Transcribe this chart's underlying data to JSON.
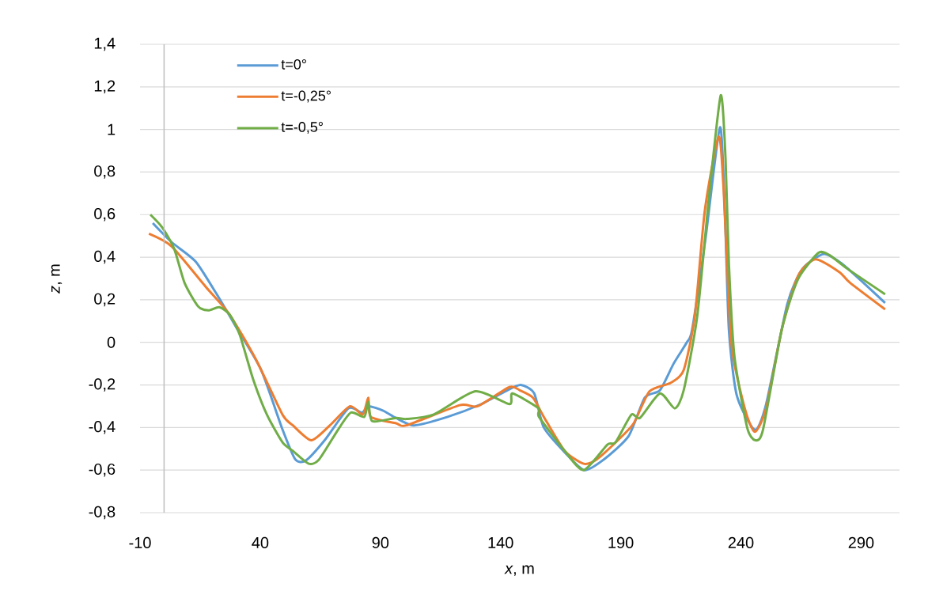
{
  "chart_data": {
    "type": "line",
    "xlabel": "*x*, m",
    "ylabel": "*z*, m",
    "xlim": [
      -10,
      306
    ],
    "ylim": [
      -0.8,
      1.4
    ],
    "xticks": [
      -10,
      40,
      90,
      140,
      190,
      240,
      290
    ],
    "yticks": [
      {
        "value": -0.8,
        "label": "-0,8"
      },
      {
        "value": -0.6,
        "label": "-0,6"
      },
      {
        "value": -0.4,
        "label": "-0,4"
      },
      {
        "value": -0.2,
        "label": "-0,2"
      },
      {
        "value": 0,
        "label": "0"
      },
      {
        "value": 0.2,
        "label": "0,2"
      },
      {
        "value": 0.4,
        "label": "0,4"
      },
      {
        "value": 0.6,
        "label": "0,6"
      },
      {
        "value": 0.8,
        "label": "0,8"
      },
      {
        "value": 1,
        "label": "1"
      },
      {
        "value": 1.2,
        "label": "1,2"
      },
      {
        "value": 1.4,
        "label": "1,4"
      }
    ],
    "grid": "y",
    "legend": "top left",
    "marker": "none",
    "line_style": "solid",
    "ref_lines": [
      {
        "axis": "x",
        "value": 0,
        "color": "#bfbfbf"
      }
    ],
    "series": [
      {
        "name": "t=0°",
        "color": "#5b9bd5",
        "x": [
          -4.7,
          3.2,
          13.1,
          21.7,
          30.6,
          40.4,
          49.3,
          54.6,
          59,
          66.8,
          76.7,
          82.3,
          85,
          91,
          96.5,
          104,
          118,
          132,
          142,
          148.4,
          154,
          158,
          167,
          174.8,
          183,
          193.3,
          200,
          206.3,
          212,
          217.5,
          219.7,
          225.3,
          231.3,
          233.3,
          235,
          238.3,
          245.8,
          250.5,
          259.3,
          265.6,
          274.5,
          282,
          290,
          300
        ],
        "values": [
          0.56,
          0.47,
          0.38,
          0.23,
          0.06,
          -0.13,
          -0.41,
          -0.55,
          -0.555,
          -0.46,
          -0.31,
          -0.33,
          -0.3,
          -0.32,
          -0.355,
          -0.39,
          -0.35,
          -0.29,
          -0.23,
          -0.2,
          -0.24,
          -0.4,
          -0.52,
          -0.6,
          -0.55,
          -0.44,
          -0.26,
          -0.225,
          -0.1,
          0,
          0.06,
          0.49,
          1.01,
          0.62,
          0.06,
          -0.25,
          -0.41,
          -0.29,
          0.18,
          0.345,
          0.415,
          0.37,
          0.29,
          0.185
        ]
      },
      {
        "name": "t=-0,25°",
        "color": "#ed7d31",
        "x": [
          -6.3,
          3.2,
          17.4,
          27.3,
          38.2,
          49.3,
          53.6,
          61.3,
          69,
          77.4,
          82.6,
          85,
          86,
          96.5,
          100.8,
          123,
          130.5,
          143.7,
          148,
          153.5,
          158,
          166.7,
          174.6,
          180,
          188.8,
          195.4,
          202,
          210.9,
          216.2,
          220.8,
          225,
          230.7,
          232.7,
          236,
          241.6,
          245.8,
          250.5,
          257,
          263.7,
          271,
          281,
          285.4,
          300
        ],
        "values": [
          0.51,
          0.45,
          0.26,
          0.13,
          -0.08,
          -0.34,
          -0.39,
          -0.46,
          -0.39,
          -0.3,
          -0.34,
          -0.26,
          -0.35,
          -0.38,
          -0.39,
          -0.295,
          -0.3,
          -0.21,
          -0.225,
          -0.26,
          -0.35,
          -0.51,
          -0.57,
          -0.55,
          -0.46,
          -0.38,
          -0.23,
          -0.19,
          -0.13,
          0.12,
          0.62,
          0.965,
          0.74,
          0,
          -0.31,
          -0.42,
          -0.31,
          0.06,
          0.31,
          0.39,
          0.33,
          0.28,
          0.155
        ]
      },
      {
        "name": "t=-0,5°",
        "color": "#70ad47",
        "x": [
          -5.7,
          -0.8,
          4.2,
          8.5,
          14.1,
          18.4,
          23,
          27.3,
          31.5,
          37.1,
          42.8,
          49.3,
          53.6,
          60.2,
          64.5,
          72.4,
          77.7,
          83.3,
          85,
          86.6,
          96.5,
          100.8,
          112,
          129.5,
          143.7,
          145,
          155.8,
          156,
          166.7,
          174.6,
          184.5,
          187.8,
          194.4,
          198,
          206.3,
          212.5,
          216.2,
          221.8,
          226.7,
          231.6,
          233.6,
          235,
          237.3,
          242.6,
          246,
          249.2,
          257,
          263.7,
          272.2,
          276.8,
          284.4,
          300
        ],
        "values": [
          0.6,
          0.54,
          0.44,
          0.28,
          0.17,
          0.15,
          0.165,
          0.13,
          0.035,
          -0.175,
          -0.34,
          -0.47,
          -0.51,
          -0.57,
          -0.55,
          -0.41,
          -0.33,
          -0.35,
          -0.28,
          -0.37,
          -0.355,
          -0.36,
          -0.34,
          -0.23,
          -0.29,
          -0.24,
          -0.31,
          -0.35,
          -0.51,
          -0.6,
          -0.48,
          -0.47,
          -0.34,
          -0.355,
          -0.24,
          -0.31,
          -0.225,
          0.12,
          0.68,
          1.16,
          0.865,
          0.37,
          -0.065,
          -0.4,
          -0.46,
          -0.41,
          0.06,
          0.295,
          0.42,
          0.41,
          0.345,
          0.226
        ]
      }
    ]
  }
}
